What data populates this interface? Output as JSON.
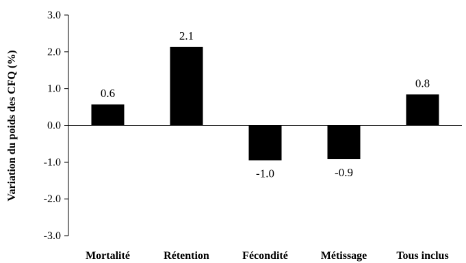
{
  "chart_data": {
    "type": "bar",
    "title": "",
    "xlabel": "",
    "ylabel": "Variation du poids des CFQ (%)",
    "ylim": [
      -3.0,
      3.0
    ],
    "yticks": [
      3.0,
      2.0,
      1.0,
      0.0,
      -1.0,
      -2.0,
      -3.0
    ],
    "ytick_labels": [
      "3.0",
      "2.0",
      "1.0",
      "0.0",
      "-1.0",
      "-2.0",
      "-3.0"
    ],
    "categories": [
      "Mortalité",
      "Rétention",
      "Fécondité",
      "Métissage",
      "Tous inclus"
    ],
    "values": [
      0.57,
      2.13,
      -0.95,
      -0.92,
      0.84
    ],
    "data_labels": [
      "0.6",
      "2.1",
      "-1.0",
      "-0.9",
      "0.8"
    ],
    "grid": false,
    "legend": "none",
    "bar_color": "#000000"
  }
}
